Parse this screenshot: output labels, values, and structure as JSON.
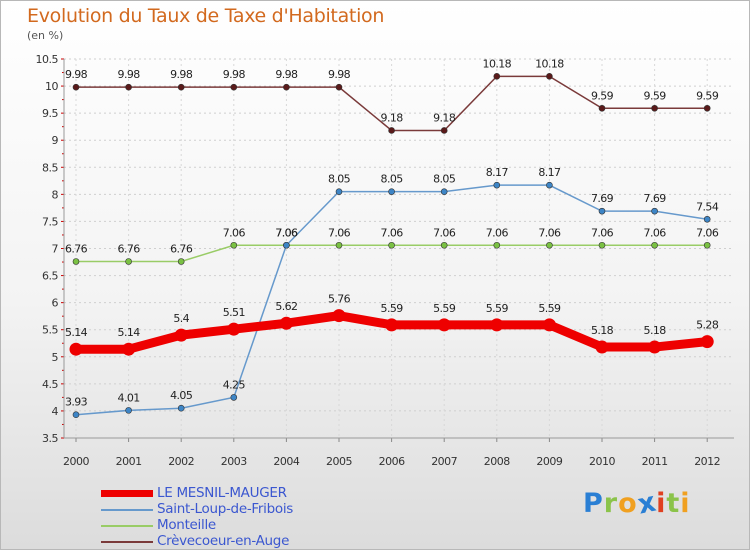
{
  "title": "Evolution du Taux de Taxe d'Habitation",
  "subtitle": "(en %)",
  "logo": {
    "letters": [
      "P",
      "r",
      "o",
      "x",
      "i",
      "t",
      "i"
    ],
    "colors": [
      "#2a7fd4",
      "#8bc34a",
      "#f0a020",
      "#2a7fd4",
      "#e04020",
      "#8bc34a",
      "#f0a020"
    ]
  },
  "chart_data": {
    "type": "line",
    "title": "Evolution du Taux de Taxe d'Habitation",
    "subtitle": "(en %)",
    "x": [
      "2000",
      "2001",
      "2002",
      "2003",
      "2004",
      "2005",
      "2006",
      "2007",
      "2008",
      "2009",
      "2010",
      "2011",
      "2012"
    ],
    "ylim": [
      3.5,
      10.5
    ],
    "yticks": [
      "3.5",
      "4",
      "4.5",
      "5",
      "5.5",
      "6",
      "6.5",
      "7",
      "7.5",
      "8",
      "8.5",
      "9",
      "9.5",
      "10",
      "10.5"
    ],
    "grid": true,
    "legend_position": "bottom-left",
    "series": [
      {
        "name": "LE MESNIL-MAUGER",
        "color": "#ee0000",
        "thick": true,
        "values": [
          5.14,
          5.14,
          5.4,
          5.51,
          5.62,
          5.76,
          5.59,
          5.59,
          5.59,
          5.59,
          5.18,
          5.18,
          5.28
        ],
        "labels": [
          "5.14",
          "5.14",
          "5.4",
          "5.51",
          "5.62",
          "5.76",
          "5.59",
          "5.59",
          "5.59",
          "5.59",
          "5.18",
          "5.18",
          "5.28"
        ]
      },
      {
        "name": "Saint-Loup-de-Fribois",
        "color": "#6699cc",
        "marker": "#3d85c6",
        "values": [
          3.93,
          4.01,
          4.05,
          4.25,
          7.06,
          8.05,
          8.05,
          8.05,
          8.17,
          8.17,
          7.69,
          7.69,
          7.54
        ],
        "labels": [
          "3.93",
          "4.01",
          "4.05",
          "4.25",
          "7.06",
          "8.05",
          "8.05",
          "8.05",
          "8.17",
          "8.17",
          "7.69",
          "7.69",
          "7.54"
        ]
      },
      {
        "name": "Monteille",
        "color": "#99cc66",
        "marker": "#7ac143",
        "values": [
          6.76,
          6.76,
          6.76,
          7.06,
          7.06,
          7.06,
          7.06,
          7.06,
          7.06,
          7.06,
          7.06,
          7.06,
          7.06
        ],
        "labels": [
          "6.76",
          "6.76",
          "6.76",
          "7.06",
          "7.06",
          "7.06",
          "7.06",
          "7.06",
          "7.06",
          "7.06",
          "7.06",
          "7.06",
          "7.06"
        ]
      },
      {
        "name": "Crèvecoeur-en-Auge",
        "color": "#7a3a3a",
        "marker": "#5a1a1a",
        "values": [
          9.98,
          9.98,
          9.98,
          9.98,
          9.98,
          9.98,
          9.18,
          9.18,
          10.18,
          10.18,
          9.59,
          9.59,
          9.59
        ],
        "labels": [
          "9.98",
          "9.98",
          "9.98",
          "9.98",
          "9.98",
          "9.98",
          "9.18",
          "9.18",
          "10.18",
          "10.18",
          "9.59",
          "9.59",
          "9.59"
        ]
      }
    ]
  }
}
